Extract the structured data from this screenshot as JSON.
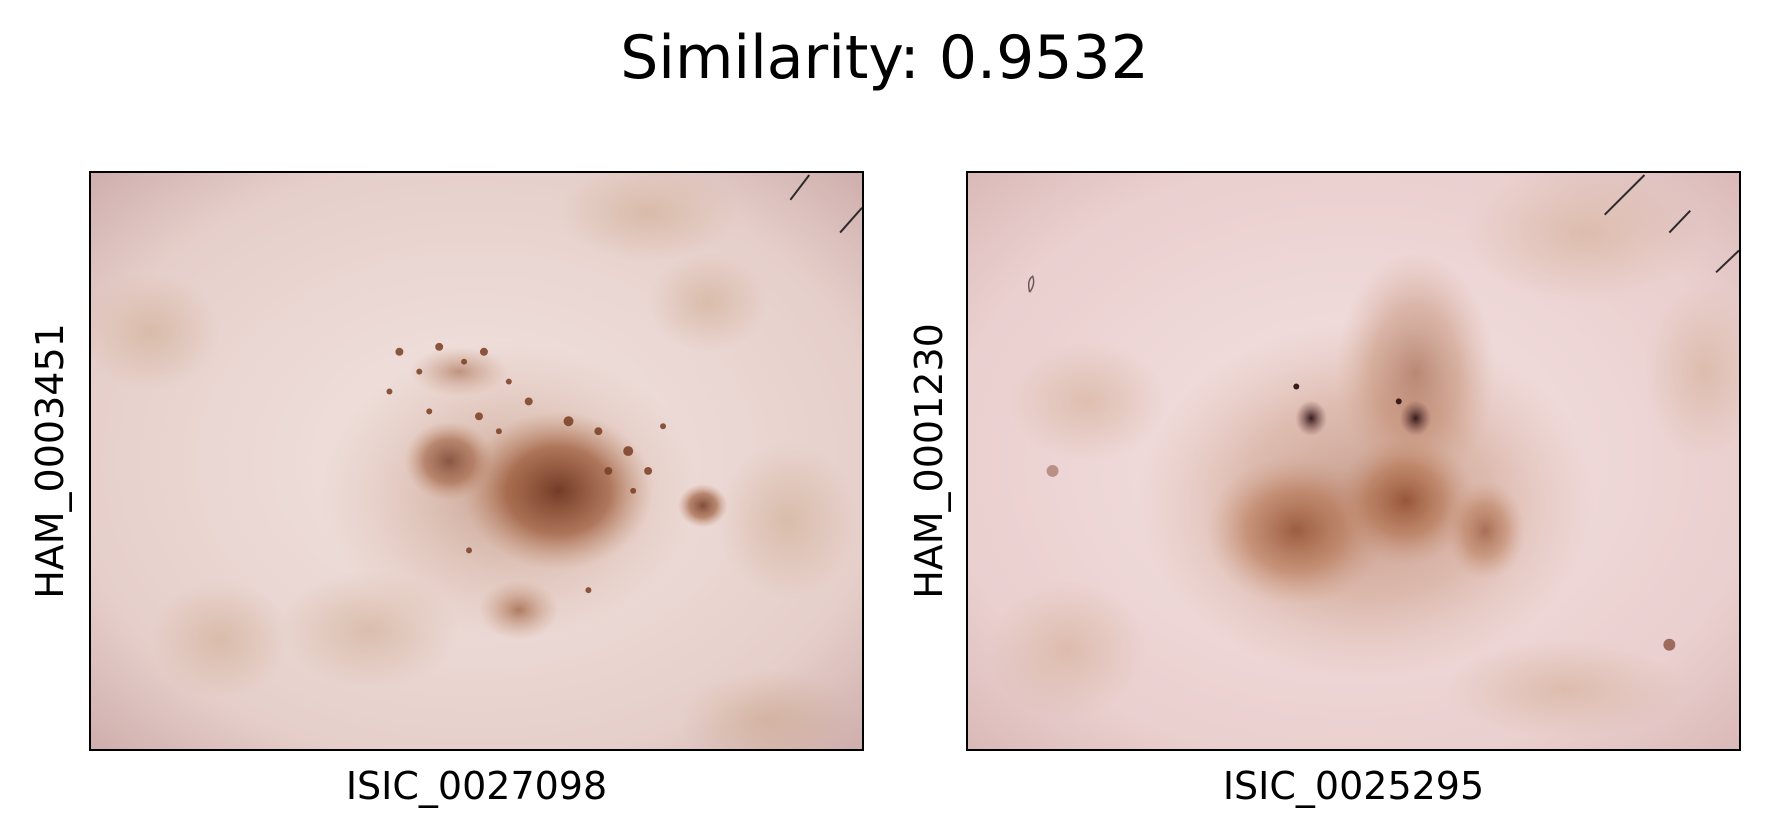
{
  "figure": {
    "title": "Similarity: 0.9532"
  },
  "panels": [
    {
      "image_id": "ISIC_0027098",
      "lesion_id": "HAM_0003451"
    },
    {
      "image_id": "ISIC_0025295",
      "lesion_id": "HAM_0001230"
    }
  ],
  "colors": {
    "skin_base": "#e8d3cf",
    "skin_light": "#f1e1df",
    "lesion_brown": "#8a4a2c",
    "lesion_light": "#b47a55",
    "hair": "#2a2a2a",
    "frame": "#000000"
  }
}
